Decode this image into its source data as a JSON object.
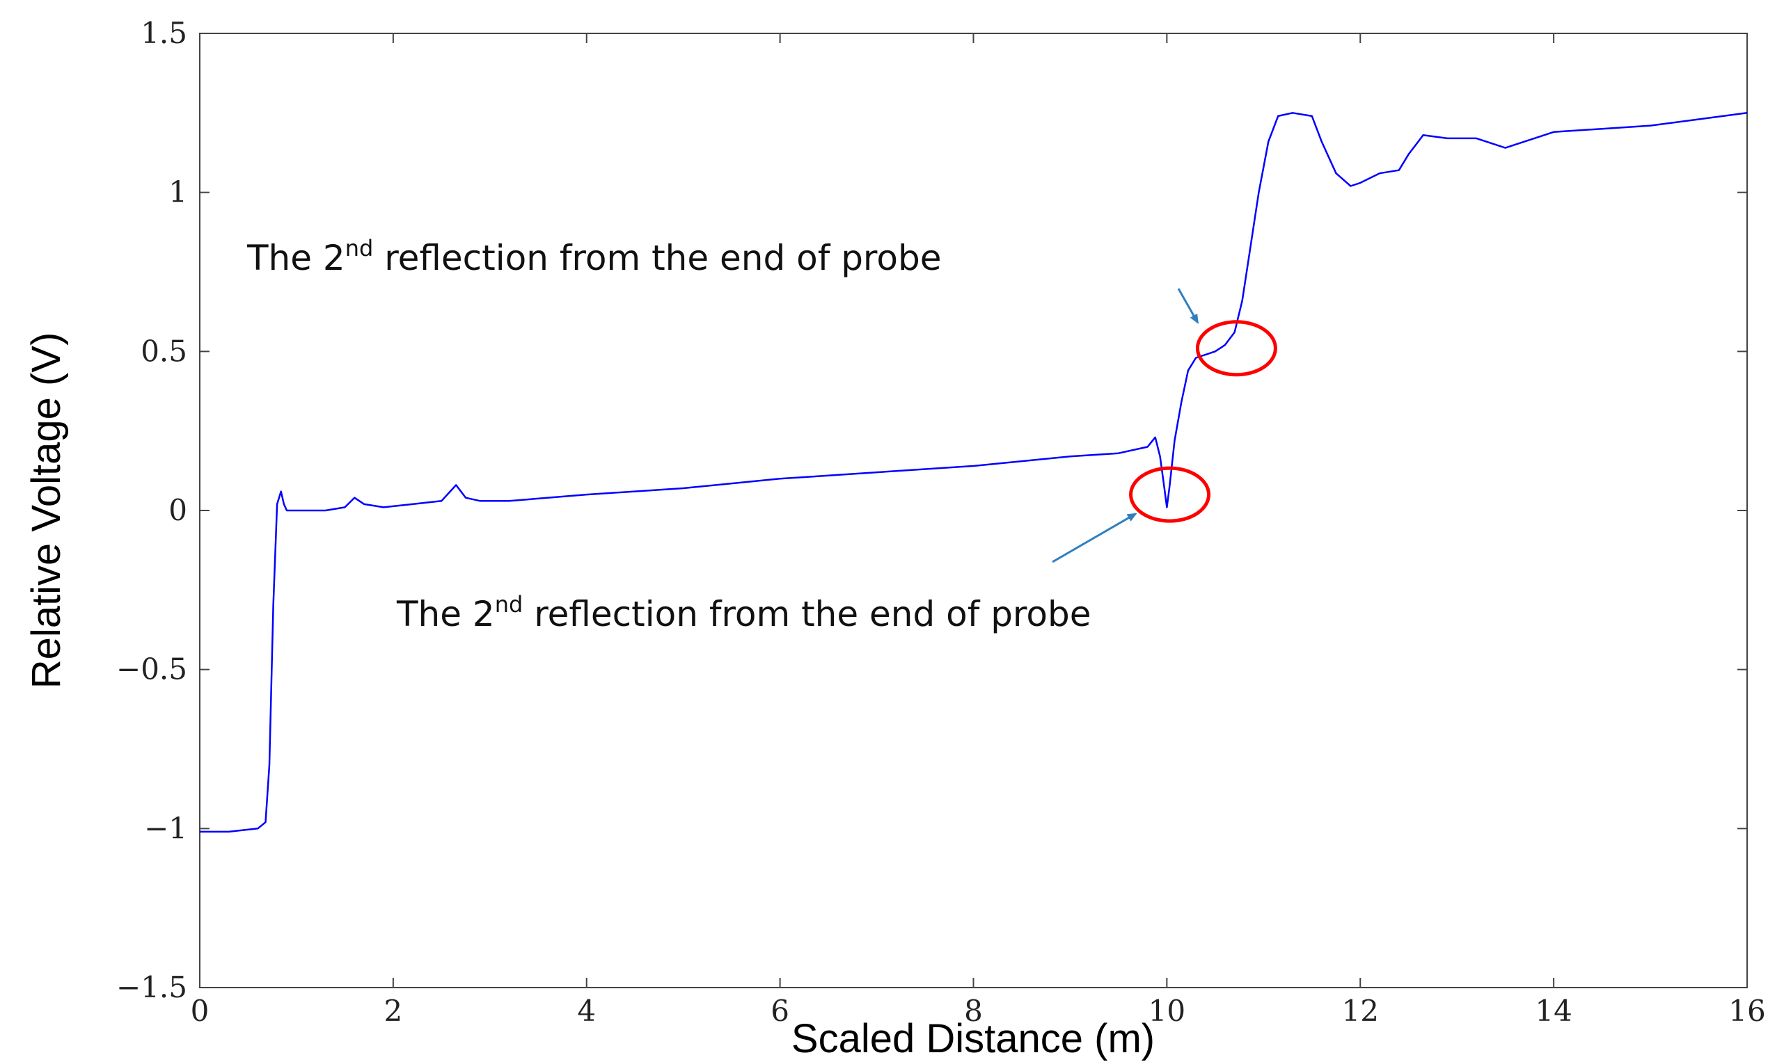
{
  "chart_data": {
    "type": "line",
    "title": "",
    "xlabel": "Scaled Distance (m)",
    "ylabel": "Relative Voltage (V)",
    "xlim": [
      0,
      16
    ],
    "ylim": [
      -1.5,
      1.5
    ],
    "grid": false,
    "x_ticks": [
      0,
      2,
      4,
      6,
      8,
      10,
      12,
      14,
      16
    ],
    "x_tick_labels": [
      "0",
      "2",
      "4",
      "6",
      "8",
      "10",
      "12",
      "14",
      "16"
    ],
    "y_ticks": [
      -1.5,
      -1,
      -0.5,
      0,
      0.5,
      1,
      1.5
    ],
    "y_tick_labels": [
      "−1.5",
      "−1",
      "−0.5",
      "0",
      "0.5",
      "1",
      "1.5"
    ],
    "series": [
      {
        "color": "#0000ff",
        "x": [
          0,
          0.3,
          0.6,
          0.68,
          0.72,
          0.76,
          0.8,
          0.84,
          0.87,
          0.9,
          0.95,
          1.1,
          1.3,
          1.5,
          1.6,
          1.7,
          1.9,
          2.2,
          2.5,
          2.65,
          2.75,
          2.9,
          3.2,
          4.0,
          5.0,
          6.0,
          7.0,
          8.0,
          9.0,
          9.5,
          9.8,
          9.88,
          9.93,
          9.97,
          10.0,
          10.03,
          10.08,
          10.15,
          10.22,
          10.3,
          10.4,
          10.5,
          10.6,
          10.7,
          10.78,
          10.85,
          10.95,
          11.05,
          11.15,
          11.3,
          11.5,
          11.6,
          11.75,
          11.9,
          12.0,
          12.2,
          12.4,
          12.5,
          12.65,
          12.9,
          13.2,
          13.5,
          13.8,
          14.0,
          14.5,
          15.0,
          15.5,
          16.0
        ],
        "y": [
          -1.01,
          -1.01,
          -1.0,
          -0.98,
          -0.8,
          -0.3,
          0.02,
          0.06,
          0.02,
          0.0,
          0.0,
          0.0,
          0.0,
          0.01,
          0.04,
          0.02,
          0.01,
          0.02,
          0.03,
          0.08,
          0.04,
          0.03,
          0.03,
          0.05,
          0.07,
          0.1,
          0.12,
          0.14,
          0.17,
          0.18,
          0.2,
          0.23,
          0.17,
          0.08,
          0.01,
          0.08,
          0.22,
          0.34,
          0.44,
          0.48,
          0.49,
          0.5,
          0.52,
          0.56,
          0.66,
          0.8,
          1.0,
          1.16,
          1.24,
          1.25,
          1.24,
          1.16,
          1.06,
          1.02,
          1.03,
          1.06,
          1.07,
          1.12,
          1.18,
          1.17,
          1.17,
          1.14,
          1.17,
          1.19,
          1.2,
          1.21,
          1.23,
          1.25
        ]
      }
    ],
    "annotations": [
      {
        "text_before": "The 2",
        "superscript": "nd",
        "text_after": " reflection from the end of probe",
        "target_x": 10.32,
        "target_y": 0.59
      },
      {
        "text_before": "The 2",
        "superscript": "nd",
        "text_after": " reflection from the end of probe",
        "target_x": 9.68,
        "target_y": -0.01
      }
    ],
    "highlights": [
      {
        "shape": "circle",
        "color": "#ff0000",
        "center_x": 10.72,
        "center_y": 0.51
      },
      {
        "shape": "circle",
        "color": "#ff0000",
        "center_x": 10.03,
        "center_y": 0.05
      }
    ]
  }
}
